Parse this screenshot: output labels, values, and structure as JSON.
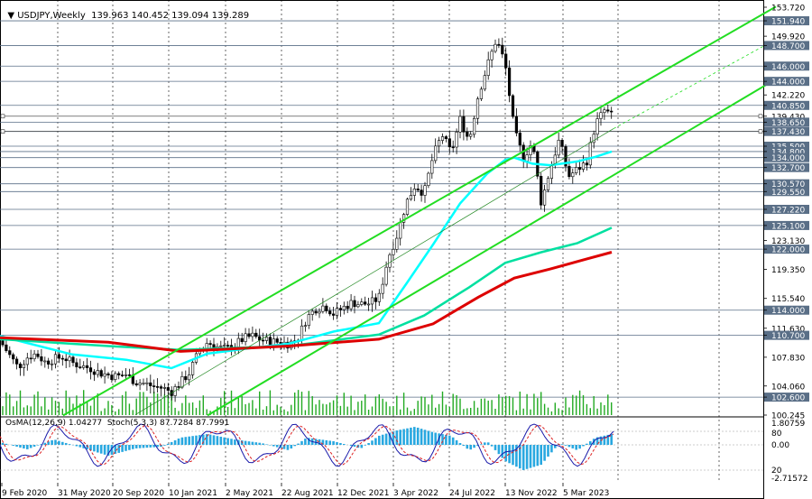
{
  "header": {
    "symbol": "USDJPY,Weekly",
    "ohlc": "139.963 140.452 139.094 139.289"
  },
  "indicator_header": "OsMA(12,26,9) 1.04277  Stoch(5,3,3) 87.7284 87.7991",
  "chart_data": {
    "type": "candlestick",
    "title": "USDJPY,Weekly",
    "price_axis_labels": [
      "153.720",
      "151.940",
      "149.920",
      "148.700",
      "146.000",
      "144.000",
      "142.220",
      "140.850",
      "139.430",
      "138.650",
      "137.430",
      "135.500",
      "134.800",
      "134.000",
      "132.700",
      "130.570",
      "129.550",
      "127.220",
      "125.100",
      "123.130",
      "122.000",
      "119.350",
      "115.540",
      "114.000",
      "111.630",
      "110.700",
      "107.830",
      "104.060",
      "102.600",
      "100.245"
    ],
    "highlighted_levels": [
      "151.940",
      "148.700",
      "146.000",
      "144.000",
      "140.850",
      "138.650",
      "137.430",
      "135.500",
      "134.800",
      "134.000",
      "132.700",
      "130.570",
      "129.550",
      "127.220",
      "125.100",
      "122.000",
      "114.000",
      "110.700",
      "102.600"
    ],
    "time_axis_labels": [
      "9 Feb 2020",
      "31 May 2020",
      "20 Sep 2020",
      "10 Jan 2021",
      "2 May 2021",
      "22 Aug 2021",
      "12 Dec 2021",
      "3 Apr 2022",
      "24 Jul 2022",
      "13 Nov 2022",
      "5 Mar 2023"
    ],
    "ylim": [
      100.245,
      153.72
    ],
    "price_path": [
      [
        0,
        110.0
      ],
      [
        10,
        108.2
      ],
      [
        20,
        106.5
      ],
      [
        30,
        107.8
      ],
      [
        40,
        108.3
      ],
      [
        50,
        107.2
      ],
      [
        60,
        107.6
      ],
      [
        70,
        107.9
      ],
      [
        80,
        107.1
      ],
      [
        90,
        106.7
      ],
      [
        100,
        106.4
      ],
      [
        110,
        105.8
      ],
      [
        120,
        105.5
      ],
      [
        130,
        105.3
      ],
      [
        140,
        105.6
      ],
      [
        150,
        104.6
      ],
      [
        160,
        104.4
      ],
      [
        170,
        104.0
      ],
      [
        180,
        103.8
      ],
      [
        190,
        103.3
      ],
      [
        200,
        104.5
      ],
      [
        210,
        105.8
      ],
      [
        220,
        108.5
      ],
      [
        230,
        109.8
      ],
      [
        240,
        109.2
      ],
      [
        250,
        108.9
      ],
      [
        260,
        109.4
      ],
      [
        270,
        110.3
      ],
      [
        280,
        110.6
      ],
      [
        290,
        110.1
      ],
      [
        300,
        109.9
      ],
      [
        310,
        109.8
      ],
      [
        320,
        109.6
      ],
      [
        330,
        110.3
      ],
      [
        340,
        113.0
      ],
      [
        350,
        114.2
      ],
      [
        360,
        114.6
      ],
      [
        370,
        113.5
      ],
      [
        380,
        114.3
      ],
      [
        390,
        115.0
      ],
      [
        400,
        114.8
      ],
      [
        410,
        114.9
      ],
      [
        420,
        115.6
      ],
      [
        430,
        120.8
      ],
      [
        440,
        123.8
      ],
      [
        450,
        128.0
      ],
      [
        460,
        130.4
      ],
      [
        470,
        129.3
      ],
      [
        480,
        134.2
      ],
      [
        490,
        137.0
      ],
      [
        500,
        134.6
      ],
      [
        510,
        139.0
      ],
      [
        520,
        136.2
      ],
      [
        530,
        142.2
      ],
      [
        540,
        146.0
      ],
      [
        550,
        149.5
      ],
      [
        560,
        146.3
      ],
      [
        570,
        137.5
      ],
      [
        580,
        134.0
      ],
      [
        590,
        136.0
      ],
      [
        600,
        128.0
      ],
      [
        610,
        132.7
      ],
      [
        620,
        136.4
      ],
      [
        630,
        131.5
      ],
      [
        640,
        132.5
      ],
      [
        650,
        133.4
      ],
      [
        660,
        138.4
      ],
      [
        670,
        140.2
      ],
      [
        680,
        139.3
      ]
    ],
    "series": [
      {
        "name": "",
        "color": "#00ffff",
        "points": [
          [
            0,
            110.6
          ],
          [
            80,
            108.2
          ],
          [
            140,
            107.5
          ],
          [
            190,
            106.4
          ],
          [
            230,
            108.3
          ],
          [
            270,
            108.9
          ],
          [
            320,
            109.6
          ],
          [
            370,
            111.2
          ],
          [
            420,
            112.3
          ],
          [
            450,
            117.4
          ],
          [
            480,
            122.6
          ],
          [
            510,
            128.0
          ],
          [
            540,
            131.9
          ],
          [
            560,
            133.7
          ],
          [
            570,
            134.0
          ],
          [
            590,
            133.2
          ],
          [
            610,
            133.0
          ],
          [
            640,
            133.5
          ],
          [
            660,
            134.1
          ],
          [
            678,
            134.8
          ]
        ]
      },
      {
        "name": "",
        "color": "#00e0a0",
        "points": [
          [
            0,
            110.2
          ],
          [
            120,
            109.3
          ],
          [
            200,
            108.8
          ],
          [
            320,
            109.3
          ],
          [
            420,
            110.8
          ],
          [
            470,
            113.3
          ],
          [
            520,
            117.0
          ],
          [
            560,
            120.2
          ],
          [
            600,
            121.6
          ],
          [
            640,
            122.8
          ],
          [
            678,
            124.8
          ]
        ]
      },
      {
        "name": "",
        "color": "#dd0000",
        "points": [
          [
            0,
            110.4
          ],
          [
            120,
            109.8
          ],
          [
            200,
            108.6
          ],
          [
            320,
            109.3
          ],
          [
            420,
            110.2
          ],
          [
            480,
            112.2
          ],
          [
            530,
            115.7
          ],
          [
            570,
            118.2
          ],
          [
            610,
            119.4
          ],
          [
            650,
            120.7
          ],
          [
            678,
            121.6
          ]
        ]
      }
    ],
    "channels": [
      {
        "upper_from": [
          70,
          100.2
        ],
        "upper_to": [
          860,
          153.8
        ],
        "lower_from": [
          230,
          100.2
        ],
        "lower_to": [
          860,
          144.3
        ]
      }
    ],
    "volume_scale": 1.0,
    "indicators": {
      "osma_value": "1.04277",
      "stoch_main": "87.7284",
      "stoch_signal": "87.7991",
      "right_labels": [
        "1.80759",
        "80",
        "0.00",
        "20",
        "-2.71572"
      ]
    },
    "grid": true,
    "background": "#ffffff"
  }
}
